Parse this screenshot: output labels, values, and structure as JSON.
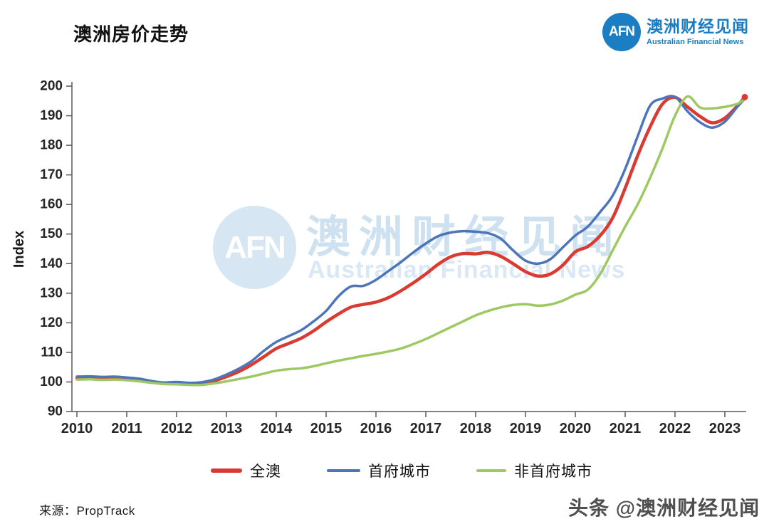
{
  "header": {
    "title": "澳洲房价走势"
  },
  "logo": {
    "abbr": "AFN",
    "name_zh": "澳洲财经见闻",
    "name_en": "Australian Financial News",
    "brand_color": "#1b7dc2"
  },
  "watermark": {
    "abbr": "AFN",
    "name_zh": "澳洲财经见闻",
    "name_en": "Australian Financial News"
  },
  "footer": {
    "source": "来源：PropTrack",
    "platform_watermark": "头条 @澳洲财经见闻"
  },
  "chart_data": {
    "type": "line",
    "title": "澳洲房价走势",
    "xlabel": "",
    "ylabel": "Index",
    "ylim": [
      90,
      200
    ],
    "xlim": [
      2010,
      2023.5
    ],
    "grid": false,
    "legend_position": "bottom",
    "yticks": [
      90,
      100,
      110,
      120,
      130,
      140,
      150,
      160,
      170,
      180,
      190,
      200
    ],
    "xticks": [
      "2010",
      "2011",
      "2012",
      "2013",
      "2014",
      "2015",
      "2016",
      "2017",
      "2018",
      "2019",
      "2020",
      "2021",
      "2022",
      "2023"
    ],
    "x": [
      2010,
      2010.25,
      2010.5,
      2010.75,
      2011,
      2011.25,
      2011.5,
      2011.75,
      2012,
      2012.25,
      2012.5,
      2012.75,
      2013,
      2013.25,
      2013.5,
      2013.75,
      2014,
      2014.25,
      2014.5,
      2014.75,
      2015,
      2015.25,
      2015.5,
      2015.75,
      2016,
      2016.25,
      2016.5,
      2016.75,
      2017,
      2017.25,
      2017.5,
      2017.75,
      2018,
      2018.25,
      2018.5,
      2018.75,
      2019,
      2019.25,
      2019.5,
      2019.75,
      2020,
      2020.25,
      2020.5,
      2020.75,
      2021,
      2021.25,
      2021.5,
      2021.75,
      2022,
      2022.25,
      2022.5,
      2022.75,
      2023,
      2023.25,
      2023.4
    ],
    "series": [
      {
        "name": "全澳",
        "color": "#d93a32",
        "width": 4.5,
        "endpoint_marker": true,
        "values": [
          101.3,
          101.4,
          101.2,
          101.3,
          101.0,
          100.6,
          100.0,
          99.6,
          99.8,
          99.5,
          99.6,
          100.3,
          101.8,
          103.5,
          105.8,
          108.5,
          111.3,
          113.0,
          114.8,
          117.3,
          120.3,
          123.0,
          125.3,
          126.2,
          127.0,
          128.5,
          130.8,
          133.5,
          136.5,
          139.8,
          142.3,
          143.4,
          143.3,
          143.8,
          142.5,
          140.0,
          137.3,
          135.8,
          136.5,
          139.5,
          144.0,
          145.8,
          149.5,
          155.5,
          165.5,
          176.5,
          186.2,
          194.0,
          196.2,
          193.0,
          189.8,
          187.6,
          189.2,
          193.3,
          196.3
        ]
      },
      {
        "name": "首府城市",
        "color": "#4d75b9",
        "width": 3.5,
        "endpoint_marker": false,
        "values": [
          101.8,
          101.9,
          101.7,
          101.8,
          101.5,
          101.1,
          100.3,
          99.8,
          100.0,
          99.7,
          99.9,
          100.8,
          102.5,
          104.5,
          107.0,
          110.5,
          113.5,
          115.5,
          117.5,
          120.5,
          124.0,
          129.0,
          132.3,
          132.5,
          134.5,
          137.5,
          140.5,
          143.8,
          146.8,
          149.3,
          150.5,
          151.0,
          150.8,
          150.3,
          148.5,
          144.5,
          141.0,
          140.0,
          141.5,
          145.5,
          149.5,
          152.5,
          157.5,
          163.0,
          172.0,
          183.0,
          193.4,
          195.8,
          196.4,
          191.5,
          187.8,
          186.0,
          188.0,
          193.0,
          195.7
        ]
      },
      {
        "name": "非首府城市",
        "color": "#9ec962",
        "width": 3.5,
        "endpoint_marker": false,
        "values": [
          100.8,
          100.9,
          100.7,
          100.8,
          100.6,
          100.2,
          99.7,
          99.3,
          99.2,
          99.0,
          99.0,
          99.5,
          100.2,
          101.0,
          101.8,
          102.8,
          103.8,
          104.3,
          104.6,
          105.3,
          106.3,
          107.2,
          108.0,
          108.8,
          109.5,
          110.3,
          111.3,
          112.8,
          114.5,
          116.5,
          118.5,
          120.5,
          122.5,
          124.0,
          125.2,
          126.0,
          126.3,
          125.8,
          126.2,
          127.5,
          129.5,
          131.2,
          136.5,
          144.5,
          152.5,
          160.0,
          169.0,
          179.0,
          190.0,
          196.5,
          192.8,
          192.5,
          193.0,
          194.0,
          195.7
        ]
      }
    ]
  }
}
